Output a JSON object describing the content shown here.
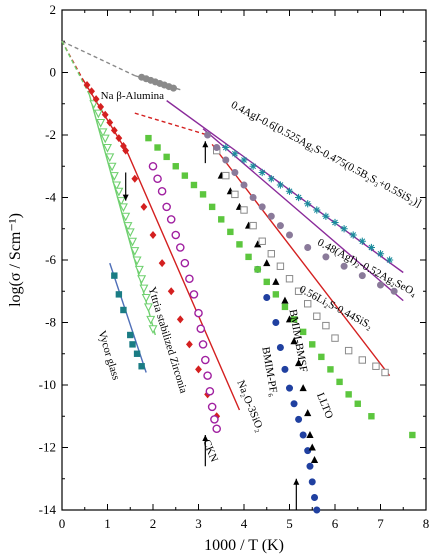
{
  "chart_data": {
    "type": "scatter",
    "xlabel": "1000 / T (K)",
    "ylabel": "log(σ / Scm⁻¹)",
    "xlim": [
      0,
      8
    ],
    "ylim": [
      -14,
      2
    ],
    "x_ticks": [
      "0",
      "1",
      "2",
      "3",
      "4",
      "5",
      "6",
      "7",
      "8"
    ],
    "y_ticks": [
      "2",
      "0",
      "-2",
      "-4",
      "-6",
      "-8",
      "-10",
      "-12",
      "-14"
    ],
    "series": [
      {
        "name": "Na β-Alumina",
        "marker": "circle",
        "color": "#8a8a8a",
        "line_color": "#8a8a8a",
        "points": [
          [
            1.75,
            -0.15
          ],
          [
            1.85,
            -0.2
          ],
          [
            1.95,
            -0.25
          ],
          [
            2.05,
            -0.3
          ],
          [
            2.15,
            -0.35
          ],
          [
            2.25,
            -0.4
          ],
          [
            2.35,
            -0.45
          ],
          [
            2.45,
            -0.5
          ]
        ],
        "fit": [
          [
            1.6,
            -0.1
          ],
          [
            2.6,
            -0.55
          ]
        ]
      },
      {
        "name": "Vycor glass",
        "marker": "square",
        "color": "#1a7c84",
        "line_color": "#4f6fb8",
        "points": [
          [
            1.15,
            -6.5
          ],
          [
            1.25,
            -7.1
          ],
          [
            1.35,
            -7.6
          ],
          [
            1.5,
            -8.4
          ],
          [
            1.55,
            -8.7
          ],
          [
            1.65,
            -9.0
          ],
          [
            1.75,
            -9.4
          ]
        ],
        "fit": [
          [
            1.05,
            -6.1
          ],
          [
            1.85,
            -9.6
          ]
        ]
      },
      {
        "name": "Yttria stabilized Zirconia",
        "marker": "triangle-down-open",
        "color": "#6fd06f",
        "line_color": "#6fd06f",
        "points": [
          [
            0.7,
            -1.0
          ],
          [
            0.8,
            -1.3
          ],
          [
            0.85,
            -1.6
          ],
          [
            0.9,
            -1.9
          ],
          [
            0.95,
            -2.1
          ],
          [
            1.0,
            -2.4
          ],
          [
            1.05,
            -2.7
          ],
          [
            1.1,
            -3.0
          ],
          [
            1.15,
            -3.3
          ],
          [
            1.2,
            -3.6
          ],
          [
            1.25,
            -3.8
          ],
          [
            1.3,
            -4.1
          ],
          [
            1.35,
            -4.3
          ],
          [
            1.4,
            -4.6
          ],
          [
            1.45,
            -4.9
          ],
          [
            1.5,
            -5.1
          ],
          [
            1.55,
            -5.4
          ],
          [
            1.6,
            -5.7
          ],
          [
            1.65,
            -6.0
          ],
          [
            1.7,
            -6.3
          ],
          [
            1.75,
            -6.6
          ],
          [
            1.8,
            -6.9
          ],
          [
            1.85,
            -7.2
          ],
          [
            1.9,
            -7.5
          ],
          [
            1.95,
            -7.9
          ],
          [
            2.0,
            -8.2
          ]
        ],
        "fit": [
          [
            0.6,
            -0.7
          ],
          [
            2.05,
            -8.4
          ]
        ]
      },
      {
        "name": "Na₂O-3SiO₂",
        "marker": "diamond",
        "color": "#d42020",
        "line_color": "#d42020",
        "points": [
          [
            0.55,
            -0.4
          ],
          [
            0.65,
            -0.6
          ],
          [
            0.75,
            -0.85
          ],
          [
            0.85,
            -1.1
          ],
          [
            0.95,
            -1.35
          ],
          [
            1.05,
            -1.6
          ],
          [
            1.15,
            -1.85
          ],
          [
            1.25,
            -2.1
          ],
          [
            1.35,
            -2.35
          ],
          [
            1.4,
            -2.5
          ],
          [
            1.6,
            -3.4
          ],
          [
            1.8,
            -4.3
          ],
          [
            2.0,
            -5.2
          ],
          [
            2.2,
            -6.1
          ],
          [
            2.4,
            -7.0
          ],
          [
            2.6,
            -7.9
          ],
          [
            2.8,
            -8.7
          ],
          [
            3.0,
            -9.5
          ],
          [
            3.2,
            -10.3
          ],
          [
            3.4,
            -11.0
          ]
        ],
        "fit": [
          [
            0.45,
            -0.2
          ],
          [
            1.45,
            -2.6
          ],
          [
            3.9,
            -10.8
          ]
        ]
      },
      {
        "name": "CKN",
        "marker": "circle-open",
        "color": "#a020a0",
        "line_color": null,
        "points": [
          [
            2.0,
            -3.0
          ],
          [
            2.1,
            -3.4
          ],
          [
            2.2,
            -3.8
          ],
          [
            2.3,
            -4.3
          ],
          [
            2.4,
            -4.7
          ],
          [
            2.5,
            -5.2
          ],
          [
            2.6,
            -5.6
          ],
          [
            2.7,
            -6.1
          ],
          [
            2.8,
            -6.6
          ],
          [
            2.9,
            -7.1
          ],
          [
            3.0,
            -7.7
          ],
          [
            3.05,
            -8.2
          ],
          [
            3.1,
            -8.7
          ],
          [
            3.15,
            -9.2
          ],
          [
            3.2,
            -9.7
          ],
          [
            3.25,
            -10.2
          ],
          [
            3.3,
            -10.7
          ],
          [
            3.35,
            -11.1
          ],
          [
            3.4,
            -11.4
          ]
        ],
        "fit": null
      },
      {
        "name": "BMIM-PF₆",
        "marker": "circle",
        "color": "#2040a0",
        "line_color": null,
        "points": [
          [
            4.3,
            -6.3
          ],
          [
            4.5,
            -7.2
          ],
          [
            4.7,
            -8.0
          ],
          [
            4.8,
            -8.8
          ],
          [
            4.9,
            -9.5
          ],
          [
            5.0,
            -10.1
          ],
          [
            5.1,
            -10.6
          ],
          [
            5.2,
            -11.1
          ],
          [
            5.3,
            -11.6
          ],
          [
            5.4,
            -12.1
          ],
          [
            5.45,
            -12.6
          ],
          [
            5.5,
            -13.1
          ],
          [
            5.55,
            -13.6
          ],
          [
            5.6,
            -14.0
          ]
        ],
        "fit": null
      },
      {
        "name": "BMIM-BMSF",
        "marker": "triangle",
        "color": "#000000",
        "line_color": null,
        "points": [
          [
            3.5,
            -3.3
          ],
          [
            3.7,
            -3.8
          ],
          [
            3.9,
            -4.3
          ],
          [
            4.1,
            -4.9
          ],
          [
            4.3,
            -5.5
          ],
          [
            4.5,
            -6.1
          ],
          [
            4.7,
            -6.7
          ],
          [
            4.9,
            -7.3
          ],
          [
            5.0,
            -7.9
          ],
          [
            5.1,
            -8.6
          ],
          [
            5.2,
            -9.3
          ],
          [
            5.3,
            -10.1
          ],
          [
            5.4,
            -10.9
          ],
          [
            5.45,
            -11.6
          ],
          [
            5.5,
            -12.0
          ],
          [
            5.55,
            -12.4
          ]
        ],
        "fit": null
      },
      {
        "name": "LLTO",
        "marker": "square",
        "color": "#5cc63e",
        "line_color": null,
        "points": [
          [
            1.9,
            -2.1
          ],
          [
            2.1,
            -2.4
          ],
          [
            2.3,
            -2.7
          ],
          [
            2.5,
            -3.0
          ],
          [
            2.7,
            -3.3
          ],
          [
            2.9,
            -3.6
          ],
          [
            3.1,
            -3.9
          ],
          [
            3.3,
            -4.3
          ],
          [
            3.5,
            -4.7
          ],
          [
            3.7,
            -5.1
          ],
          [
            3.9,
            -5.5
          ],
          [
            4.1,
            -5.9
          ],
          [
            4.3,
            -6.3
          ],
          [
            4.5,
            -6.7
          ],
          [
            4.7,
            -7.1
          ],
          [
            4.9,
            -7.5
          ],
          [
            5.1,
            -7.9
          ],
          [
            5.3,
            -8.3
          ],
          [
            5.5,
            -8.7
          ],
          [
            5.7,
            -9.1
          ],
          [
            5.9,
            -9.5
          ],
          [
            6.1,
            -9.9
          ],
          [
            6.3,
            -10.3
          ],
          [
            6.5,
            -10.6
          ],
          [
            6.8,
            -11.0
          ],
          [
            7.7,
            -11.6
          ]
        ],
        "fit": null
      },
      {
        "name": "0.56Li₂S-0.44SiS₂",
        "marker": "square-open",
        "color": "#8a8a8a",
        "line_color": "#d42020",
        "points": [
          [
            3.4,
            -2.5
          ],
          [
            3.6,
            -3.3
          ],
          [
            3.8,
            -3.9
          ],
          [
            4.0,
            -4.4
          ],
          [
            4.2,
            -4.9
          ],
          [
            4.4,
            -5.4
          ],
          [
            4.6,
            -5.8
          ],
          [
            4.8,
            -6.2
          ],
          [
            5.0,
            -6.6
          ],
          [
            5.2,
            -7.0
          ],
          [
            5.4,
            -7.4
          ],
          [
            5.6,
            -7.8
          ],
          [
            5.8,
            -8.1
          ],
          [
            6.0,
            -8.5
          ],
          [
            6.3,
            -8.9
          ],
          [
            6.6,
            -9.2
          ],
          [
            6.9,
            -9.4
          ],
          [
            7.1,
            -9.6
          ]
        ],
        "fit": [
          [
            3.3,
            -2.3
          ],
          [
            7.2,
            -9.7
          ]
        ]
      },
      {
        "name": "0.48(AgI)₂-0.52Ag₂SeO₄",
        "marker": "circle",
        "color": "#8a7a9a",
        "line_color": "#8a2a9a",
        "points": [
          [
            3.2,
            -2.0
          ],
          [
            3.4,
            -2.4
          ],
          [
            3.6,
            -2.8
          ],
          [
            3.8,
            -3.2
          ],
          [
            4.0,
            -3.6
          ],
          [
            4.2,
            -4.0
          ],
          [
            4.4,
            -4.3
          ],
          [
            4.6,
            -4.6
          ],
          [
            4.8,
            -4.9
          ],
          [
            5.0,
            -5.2
          ],
          [
            5.4,
            -5.6
          ],
          [
            5.8,
            -5.9
          ],
          [
            6.2,
            -6.2
          ],
          [
            6.6,
            -6.5
          ],
          [
            7.0,
            -6.8
          ],
          [
            7.3,
            -7.0
          ]
        ],
        "fit": [
          [
            3.1,
            -1.8
          ],
          [
            7.5,
            -7.3
          ]
        ]
      },
      {
        "name": "0.4AgI-0.6[0.525Ag₂S-0.475(0.5B₂S₃+0.5SiS₂)]",
        "marker": "asterisk",
        "color": "#1a8c9c",
        "line_color": "#8a2a9a",
        "points": [
          [
            3.6,
            -2.4
          ],
          [
            3.8,
            -2.6
          ],
          [
            4.0,
            -2.8
          ],
          [
            4.2,
            -3.0
          ],
          [
            4.4,
            -3.2
          ],
          [
            4.6,
            -3.4
          ],
          [
            4.8,
            -3.6
          ],
          [
            5.0,
            -3.8
          ],
          [
            5.2,
            -4.0
          ],
          [
            5.4,
            -4.2
          ],
          [
            5.6,
            -4.4
          ],
          [
            5.8,
            -4.6
          ],
          [
            6.0,
            -4.8
          ],
          [
            6.2,
            -5.0
          ],
          [
            6.4,
            -5.2
          ],
          [
            6.6,
            -5.4
          ],
          [
            6.8,
            -5.6
          ],
          [
            7.0,
            -5.8
          ],
          [
            7.2,
            -6.0
          ]
        ],
        "fit": [
          [
            2.3,
            -0.9
          ],
          [
            7.5,
            -6.4
          ]
        ]
      }
    ],
    "dashed_lines": [
      {
        "color": "#8a8a8a",
        "points": [
          [
            0,
            1.0
          ],
          [
            1.6,
            -0.1
          ]
        ]
      },
      {
        "color": "#d42020",
        "points": [
          [
            0,
            1.0
          ],
          [
            0.45,
            -0.2
          ]
        ]
      },
      {
        "color": "#6fd06f",
        "points": [
          [
            0,
            1.0
          ],
          [
            0.6,
            -0.7
          ]
        ]
      },
      {
        "color": "#d42020",
        "points": [
          [
            1.6,
            -1.3
          ],
          [
            3.2,
            -2.0
          ]
        ]
      }
    ],
    "arrows": [
      {
        "x": 1.4,
        "y_from": -3.2,
        "y_to": -4.1,
        "dir": "down"
      },
      {
        "x": 3.15,
        "y_from": -12.6,
        "y_to": -11.6,
        "dir": "up"
      },
      {
        "x": 5.15,
        "y_from": -14.0,
        "y_to": -13.0,
        "dir": "up"
      },
      {
        "x": 3.15,
        "y_from": -2.9,
        "y_to": -2.2,
        "dir": "up"
      }
    ],
    "annotations": [
      {
        "text": "Na β-Alumina",
        "x": 0.85,
        "y": -0.85,
        "rotate": 0
      },
      {
        "text": "0.4AgI-0.6[0.525Ag₂S-0.475(0.5B₂S₃+0.5SiS₂)]",
        "x": 3.7,
        "y": -1.1,
        "rotate": 28
      },
      {
        "text": "0.48(AgI)₂-0.52Ag₂SeO₄",
        "x": 5.6,
        "y": -5.5,
        "rotate": 28
      },
      {
        "text": "0.56Li₂S-0.44SiS₂",
        "x": 5.2,
        "y": -7.0,
        "rotate": 28
      },
      {
        "text": "Yttria stabilized Zirconia",
        "x": 1.9,
        "y": -6.9,
        "rotate": 73
      },
      {
        "text": "Vycor glass",
        "x": 0.8,
        "y": -8.3,
        "rotate": 73
      },
      {
        "text": "Na₂O-3SiO₂",
        "x": 3.85,
        "y": -9.9,
        "rotate": 68
      },
      {
        "text": "CKN",
        "x": 3.1,
        "y": -11.8,
        "rotate": 68
      },
      {
        "text": "BMIM-PF₆",
        "x": 4.4,
        "y": -8.8,
        "rotate": 80
      },
      {
        "text": "BMIM-BMSF",
        "x": 5.0,
        "y": -7.6,
        "rotate": 80
      },
      {
        "text": "LLTO",
        "x": 5.6,
        "y": -10.3,
        "rotate": 68
      }
    ]
  }
}
